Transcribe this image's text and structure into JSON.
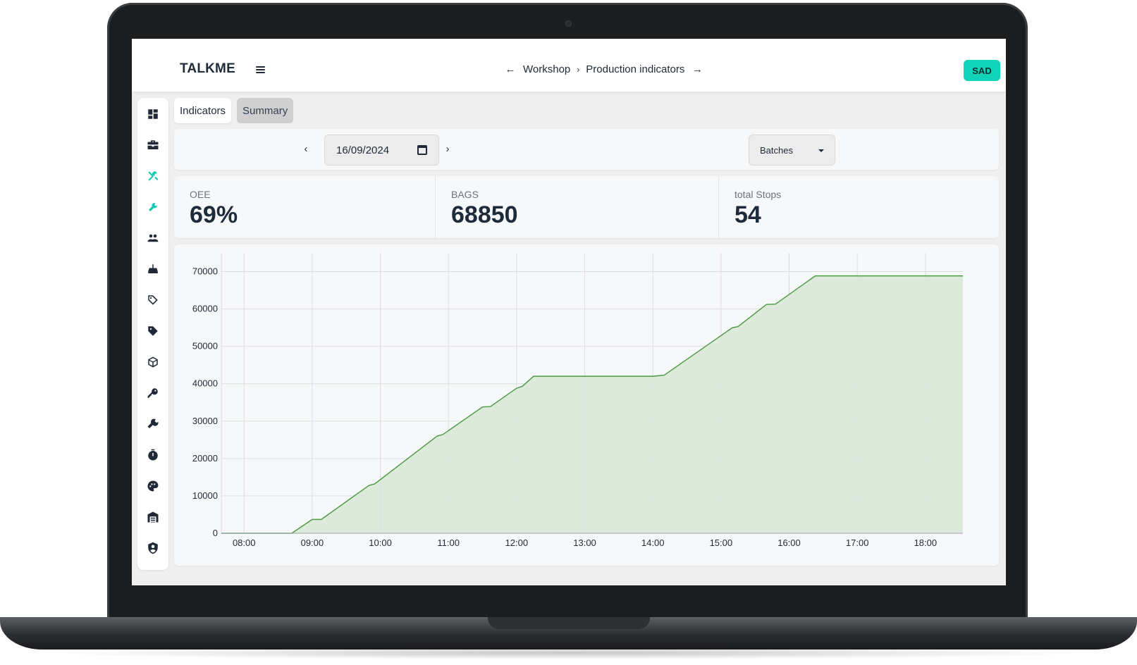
{
  "header": {
    "brand": "TALKME",
    "menu_icon": "hamburger-menu-icon",
    "breadcrumb": [
      "Workshop",
      "Production indicators"
    ],
    "back_icon": "arrow-left-icon",
    "forward_icon": "arrow-right-icon",
    "separator_icon": "chevron-right-icon",
    "user_badge": "SAD",
    "accent_color": "#10d3b7"
  },
  "sidebar": {
    "items": [
      {
        "icon": "dashboard-icon",
        "active": false
      },
      {
        "icon": "briefcase-icon",
        "active": false
      },
      {
        "icon": "tools-icon",
        "active": true
      },
      {
        "icon": "wrench-small-icon",
        "active": true
      },
      {
        "icon": "operators-icon",
        "active": false
      },
      {
        "icon": "inbox-icon",
        "active": false
      },
      {
        "icon": "tag-outline-icon",
        "active": false
      },
      {
        "icon": "tag-filled-icon",
        "active": false
      },
      {
        "icon": "box-icon",
        "active": false
      },
      {
        "icon": "key-icon",
        "active": false
      },
      {
        "icon": "wrench-icon",
        "active": false
      },
      {
        "icon": "timer-icon",
        "active": false
      },
      {
        "icon": "palette-icon",
        "active": false
      },
      {
        "icon": "warehouse-icon",
        "active": false
      },
      {
        "icon": "shield-user-icon",
        "active": false
      }
    ]
  },
  "tabs": [
    {
      "label": "Indicators",
      "active": true
    },
    {
      "label": "Summary",
      "active": false
    }
  ],
  "filters": {
    "date": "16/09/2024",
    "prev_icon": "chevron-left-icon",
    "next_icon": "chevron-right-icon",
    "calendar_icon": "calendar-icon",
    "group_by": "Batches",
    "dropdown_icon": "caret-down-icon"
  },
  "kpis": [
    {
      "label": "OEE",
      "value": "69%"
    },
    {
      "label": "BAGS",
      "value": "68850"
    },
    {
      "label": "total Stops",
      "value": "54"
    }
  ],
  "chart_data": {
    "type": "area",
    "title": "",
    "xlabel": "",
    "ylabel": "",
    "x_ticks": [
      "08:00",
      "09:00",
      "10:00",
      "11:00",
      "12:00",
      "13:00",
      "14:00",
      "15:00",
      "16:00",
      "17:00",
      "18:00"
    ],
    "y_ticks": [
      0,
      10000,
      20000,
      30000,
      40000,
      50000,
      60000,
      70000
    ],
    "xlim": [
      "07:40",
      "18:33"
    ],
    "ylim": [
      0,
      75000
    ],
    "grid": true,
    "legend": "none",
    "line_color": "#4a9a3f",
    "fill_color": "#d8e7d7",
    "series": [
      {
        "x": [
          "07:40",
          "08:42",
          "09:00",
          "09:08",
          "09:50",
          "09:55",
          "10:50",
          "10:55",
          "11:30",
          "11:37",
          "12:00",
          "12:05",
          "12:15",
          "14:00",
          "14:10",
          "15:10",
          "15:15",
          "15:40",
          "15:48",
          "16:23",
          "18:33"
        ],
        "y": [
          0,
          0,
          3700,
          3700,
          12800,
          13200,
          26000,
          26400,
          33800,
          33900,
          38800,
          39300,
          42000,
          42000,
          42300,
          55000,
          55300,
          61200,
          61300,
          68850,
          68850
        ]
      }
    ]
  }
}
